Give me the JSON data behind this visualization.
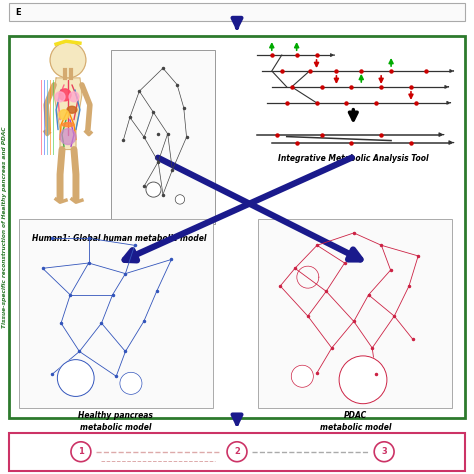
{
  "bg_color": "#ffffff",
  "green_border_color": "#2d7a2d",
  "pink_border_color": "#cc3366",
  "blue": "#1a1a8c",
  "green_arr": "#00aa00",
  "red_c": "#cc0000",
  "black_c": "#111111",
  "gray_c": "#888888",
  "label_human1": "Human1: Global human metabolic model",
  "label_imat": "Integrative Metabolic Analysis Tool",
  "label_healthy": "Healthy pancreas\nmetabolic model",
  "label_pdac": "PDAC\nmetabolic model",
  "label_side": "Tissue-specific reconstruction of Healthy pancreas and PDAC"
}
